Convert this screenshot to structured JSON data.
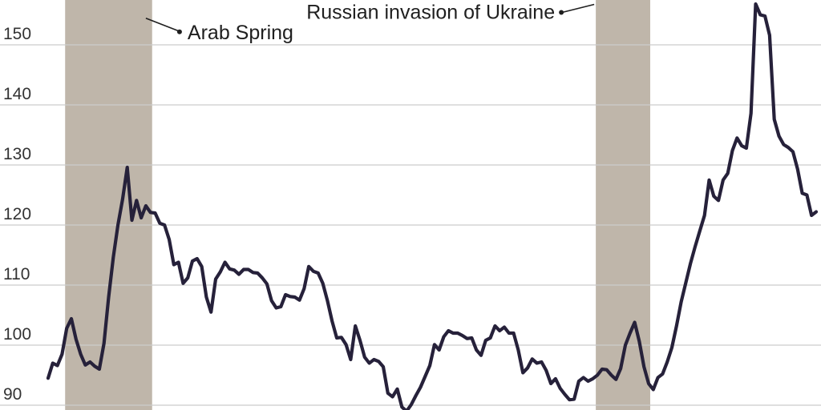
{
  "chart_data": {
    "type": "line",
    "title": "",
    "xlabel": "",
    "ylabel": "",
    "ylim": [
      88,
      157
    ],
    "yticks": [
      90,
      100,
      110,
      120,
      130,
      140,
      150
    ],
    "grid": true,
    "colors": {
      "line": "#26213a",
      "band": "#bfb6aa",
      "grid": "#cccccc",
      "background": "#ffffff"
    },
    "shaded_periods": [
      {
        "start": 4,
        "end": 22
      },
      {
        "start": 118,
        "end": 129
      }
    ],
    "annotations": [
      {
        "label": "Arab Spring",
        "x": 21,
        "y": 153.5
      },
      {
        "label": "Russian invasion of Ukraine",
        "x": 118,
        "y": 157
      }
    ],
    "series": [
      {
        "values": [
          94.5,
          97.0,
          96.6,
          98.5,
          102.8,
          104.4,
          101.0,
          98.5,
          96.7,
          97.2,
          96.5,
          96.0,
          100.3,
          108.0,
          114.6,
          120.0,
          124.3,
          129.6,
          120.8,
          124.1,
          121.2,
          123.2,
          122.1,
          122.0,
          120.3,
          120.0,
          117.6,
          113.4,
          113.8,
          110.3,
          111.2,
          114.0,
          114.4,
          113.1,
          108.0,
          105.5,
          111.0,
          112.2,
          113.8,
          112.7,
          112.5,
          111.8,
          112.6,
          112.6,
          112.1,
          112.0,
          111.2,
          110.2,
          107.4,
          106.2,
          106.4,
          108.4,
          108.1,
          108.0,
          107.5,
          109.4,
          113.1,
          112.3,
          112.0,
          110.3,
          107.4,
          104.0,
          101.2,
          101.3,
          100.1,
          97.6,
          103.2,
          100.8,
          98.0,
          97.0,
          97.6,
          97.3,
          96.4,
          92.0,
          91.4,
          92.7,
          89.7,
          89.0,
          90.1,
          91.6,
          93.0,
          94.8,
          96.6,
          100.1,
          99.2,
          101.4,
          102.4,
          102.0,
          102.0,
          101.6,
          101.1,
          101.2,
          99.2,
          98.3,
          100.8,
          101.2,
          103.2,
          102.4,
          103.0,
          102.0,
          102.0,
          99.2,
          95.4,
          96.2,
          97.7,
          97.0,
          97.2,
          95.8,
          93.6,
          94.4,
          92.8,
          91.8,
          90.9,
          91.0,
          94.0,
          94.6,
          94.0,
          94.4,
          95.0,
          96.0,
          95.9,
          95.0,
          94.3,
          96.1,
          100.0,
          102.0,
          103.8,
          100.6,
          96.4,
          93.6,
          92.6,
          94.6,
          95.2,
          97.2,
          99.6,
          103.2,
          107.2,
          110.4,
          113.6,
          116.4,
          119.0,
          121.6,
          127.5,
          124.8,
          124.1,
          127.5,
          128.6,
          132.4,
          134.5,
          133.2,
          132.8,
          138.6,
          156.8,
          155.0,
          154.8,
          151.6,
          137.6,
          134.8,
          133.4,
          132.9,
          132.2,
          129.3,
          125.3,
          125.0,
          121.6,
          122.2
        ]
      }
    ]
  }
}
